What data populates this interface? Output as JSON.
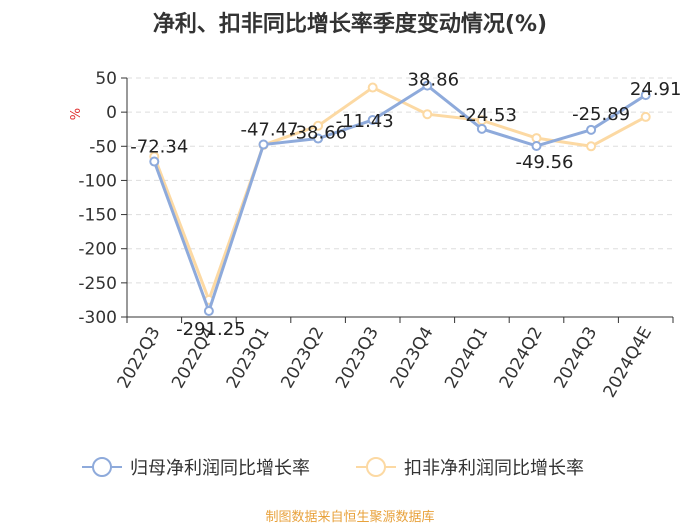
{
  "chart_data": {
    "type": "line",
    "title": "净利、扣非同比增长率季度变动情况(%)",
    "ylabel": "%",
    "xlabel": "",
    "ylim": [
      -300,
      50
    ],
    "yticks": [
      50,
      0,
      -50,
      -100,
      -150,
      -200,
      -250,
      -300
    ],
    "categories": [
      "2022Q3",
      "2022Q4",
      "2023Q1",
      "2023Q2",
      "2023Q3",
      "2023Q4",
      "2024Q1",
      "2024Q2",
      "2024Q3",
      "2024Q4E"
    ],
    "series": [
      {
        "name": "归母净利润同比增长率",
        "color": "#8eaadb",
        "values": [
          -72.34,
          -291.25,
          -47.47,
          -38.66,
          -11.43,
          38.86,
          -24.53,
          -49.56,
          -25.89,
          24.91
        ],
        "labels": [
          "-72.34",
          "-291.25",
          "-47.47",
          "-38.66",
          "-11.43",
          "38.86",
          "-24.53",
          "-49.56",
          "-25.89",
          "24.91"
        ]
      },
      {
        "name": "扣非净利润同比增长率",
        "color": "#fcd9a3",
        "values": [
          -65,
          -275,
          -48,
          -20,
          36,
          -3,
          -12,
          -38,
          -50,
          -7
        ]
      }
    ],
    "legend_position": "bottom",
    "grid": true
  },
  "source": "制图数据来自恒生聚源数据库"
}
